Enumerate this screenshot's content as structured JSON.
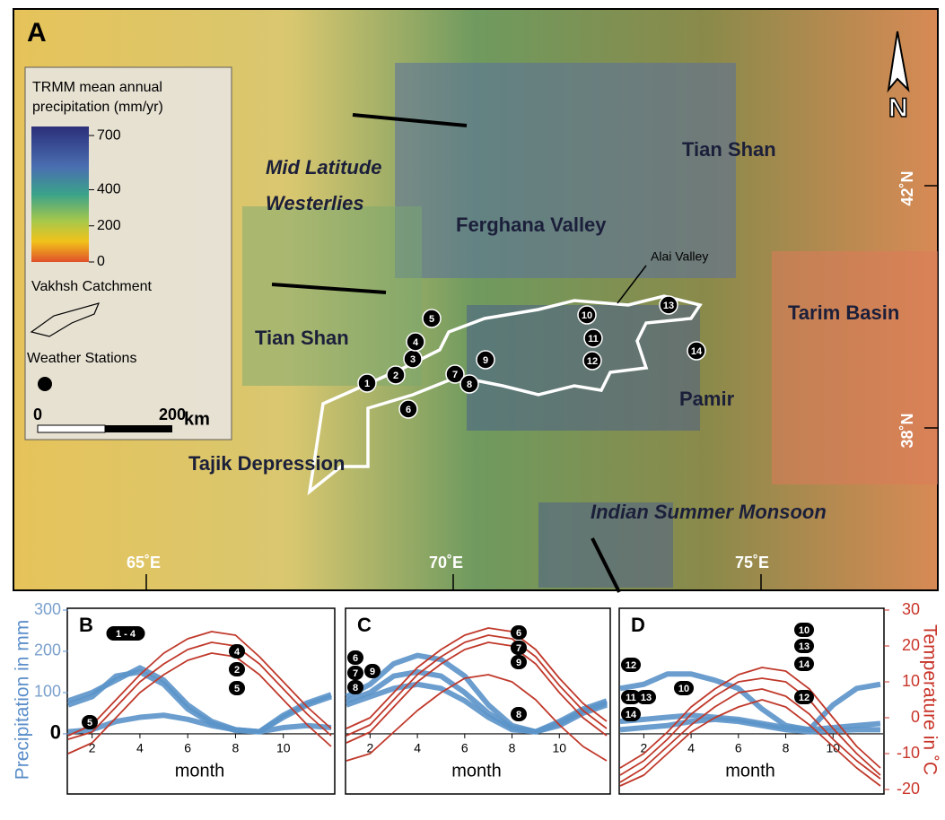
{
  "map": {
    "panel": "A",
    "north": "N",
    "colorbar": {
      "title": [
        "TRMM mean annual",
        "precipitation (mm/yr)"
      ],
      "lim": [
        0,
        750
      ],
      "ticks": [
        0,
        200,
        400,
        700
      ]
    },
    "catchment": "Vakhsh Catchment",
    "stations_label": "Weather Stations",
    "scalebar": {
      "ticks": [
        0,
        200
      ],
      "unit": "km"
    },
    "regions": [
      "Tian Shan",
      "Ferghana Valley",
      "Tian Shan",
      "Tarim Basin",
      "Pamir",
      "Tajik Depression"
    ],
    "winds": [
      [
        "Mid Latitude",
        "Westerlies"
      ],
      [
        "Indian Summer Monsoon"
      ]
    ],
    "valley": "Alai Valley",
    "latitudes": [
      "42˚N",
      "38˚N"
    ],
    "longitudes": [
      "65˚E",
      "70˚E",
      "75˚E"
    ],
    "stations": [
      "1",
      "2",
      "3",
      "4",
      "5",
      "6",
      "7",
      "8",
      "9",
      "10",
      "11",
      "12",
      "13",
      "14"
    ]
  },
  "chart_data": [
    {
      "type": "line",
      "title": "B",
      "xlabel": "month",
      "ylabel": "Precipitation in mm",
      "x": [
        1,
        2,
        3,
        4,
        5,
        6,
        7,
        8,
        9,
        10,
        11,
        12
      ],
      "xlim": [
        1,
        12
      ],
      "xticks": [
        2,
        4,
        6,
        8,
        10
      ],
      "ylim": [
        -135,
        300
      ],
      "yticks": [
        0,
        100,
        200,
        300
      ],
      "y2lim": [
        -20,
        30
      ],
      "series": [
        {
          "color": "#5b93c9",
          "values": [
            80,
            100,
            130,
            160,
            130,
            70,
            30,
            10,
            5,
            40,
            70,
            90
          ]
        },
        {
          "color": "#5b93c9",
          "values": [
            70,
            90,
            140,
            150,
            120,
            60,
            25,
            8,
            5,
            45,
            75,
            95
          ]
        },
        {
          "color": "#5b93c9",
          "values": [
            5,
            10,
            30,
            40,
            45,
            35,
            20,
            10,
            5,
            15,
            20,
            15
          ]
        },
        {
          "color": "#c0392b",
          "axis": "y2",
          "values": [
            -5,
            -2,
            5,
            12,
            18,
            22,
            24,
            23,
            17,
            10,
            3,
            -3
          ]
        },
        {
          "color": "#c0392b",
          "axis": "y2",
          "values": [
            -6,
            -4,
            3,
            10,
            15,
            19,
            21,
            20,
            15,
            8,
            1,
            -5
          ]
        },
        {
          "color": "#c0392b",
          "axis": "y2",
          "values": [
            -10,
            -7,
            0,
            7,
            12,
            16,
            18,
            17,
            12,
            5,
            -2,
            -8
          ]
        }
      ],
      "annotations": [
        "1 - 4",
        "4",
        "2",
        "5",
        "5"
      ]
    },
    {
      "type": "line",
      "title": "C",
      "xlabel": "month",
      "x": [
        1,
        2,
        3,
        4,
        5,
        6,
        7,
        8,
        9,
        10,
        11,
        12
      ],
      "xlim": [
        1,
        12
      ],
      "xticks": [
        2,
        4,
        6,
        8,
        10
      ],
      "ylim": [
        -135,
        300
      ],
      "y2lim": [
        -20,
        30
      ],
      "series": [
        {
          "color": "#5b93c9",
          "values": [
            90,
            120,
            170,
            190,
            180,
            140,
            70,
            20,
            5,
            30,
            60,
            80
          ]
        },
        {
          "color": "#5b93c9",
          "values": [
            80,
            100,
            140,
            150,
            140,
            100,
            50,
            15,
            5,
            25,
            55,
            75
          ]
        },
        {
          "color": "#5b93c9",
          "values": [
            70,
            90,
            110,
            120,
            110,
            80,
            40,
            10,
            5,
            20,
            50,
            70
          ]
        },
        {
          "color": "#c0392b",
          "axis": "y2",
          "values": [
            -3,
            0,
            7,
            14,
            19,
            23,
            25,
            24,
            19,
            11,
            4,
            -1
          ]
        },
        {
          "color": "#c0392b",
          "axis": "y2",
          "values": [
            -5,
            -2,
            5,
            12,
            17,
            21,
            23,
            22,
            17,
            9,
            2,
            -3
          ]
        },
        {
          "color": "#c0392b",
          "axis": "y2",
          "values": [
            -7,
            -4,
            3,
            10,
            15,
            19,
            21,
            20,
            15,
            7,
            0,
            -5
          ]
        },
        {
          "color": "#c0392b",
          "axis": "y2",
          "values": [
            -12,
            -10,
            -4,
            2,
            7,
            11,
            12,
            10,
            5,
            -2,
            -8,
            -12
          ]
        }
      ],
      "annotations": [
        "6",
        "7",
        "9",
        "8",
        "6",
        "7",
        "9",
        "8"
      ]
    },
    {
      "type": "line",
      "title": "D",
      "xlabel": "month",
      "y2label": "Temperature in ˚C",
      "x": [
        1,
        2,
        3,
        4,
        5,
        6,
        7,
        8,
        9,
        10,
        11,
        12
      ],
      "xlim": [
        1,
        12
      ],
      "xticks": [
        2,
        4,
        6,
        8,
        10
      ],
      "ylim": [
        -135,
        300
      ],
      "y2lim": [
        -20,
        30
      ],
      "y2ticks": [
        -20,
        -10,
        0,
        10,
        20,
        30
      ],
      "series": [
        {
          "color": "#5b93c9",
          "values": [
            110,
            120,
            145,
            145,
            130,
            110,
            60,
            20,
            10,
            70,
            110,
            120
          ]
        },
        {
          "color": "#5b93c9",
          "values": [
            30,
            35,
            40,
            45,
            40,
            35,
            25,
            15,
            10,
            15,
            20,
            25
          ]
        },
        {
          "color": "#5b93c9",
          "values": [
            10,
            15,
            20,
            30,
            35,
            30,
            20,
            10,
            5,
            8,
            10,
            10
          ]
        },
        {
          "color": "#c0392b",
          "axis": "y2",
          "values": [
            -14,
            -10,
            -4,
            3,
            8,
            12,
            14,
            13,
            8,
            0,
            -8,
            -14
          ]
        },
        {
          "color": "#c0392b",
          "axis": "y2",
          "values": [
            -16,
            -12,
            -6,
            1,
            6,
            10,
            11,
            10,
            5,
            -3,
            -10,
            -16
          ]
        },
        {
          "color": "#c0392b",
          "axis": "y2",
          "values": [
            -18,
            -14,
            -8,
            -2,
            3,
            7,
            8,
            6,
            1,
            -6,
            -12,
            -17
          ]
        },
        {
          "color": "#c0392b",
          "axis": "y2",
          "values": [
            -19,
            -16,
            -10,
            -4,
            0,
            3,
            5,
            3,
            -2,
            -8,
            -14,
            -19
          ]
        }
      ],
      "annotations": [
        "12",
        "11",
        "13",
        "14",
        "10",
        "10",
        "13",
        "14",
        "12"
      ]
    }
  ]
}
